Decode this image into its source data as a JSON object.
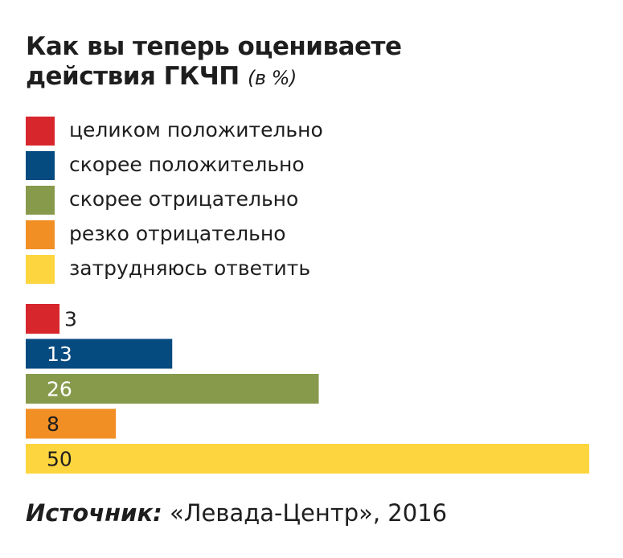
{
  "title": {
    "line1": "Как вы теперь оцениваете",
    "line2": "действия ГКЧП",
    "unit": "(в %)"
  },
  "legend": [
    {
      "label": "целиком положительно",
      "color": "#d8262d"
    },
    {
      "label": "скорее положительно",
      "color": "#064b80"
    },
    {
      "label": "скорее отрицательно",
      "color": "#879a4c"
    },
    {
      "label": "резко отрицательно",
      "color": "#f18f24"
    },
    {
      "label": "затрудняюсь ответить",
      "color": "#fdd63f"
    }
  ],
  "chart_data": {
    "type": "bar",
    "orientation": "horizontal",
    "categories": [
      "целиком положительно",
      "скорее положительно",
      "скорее отрицательно",
      "резко отрицательно",
      "затрудняюсь ответить"
    ],
    "values": [
      3,
      13,
      26,
      8,
      50
    ],
    "value_labels": [
      "3",
      "13",
      "26",
      "8",
      "50"
    ],
    "colors": [
      "#d8262d",
      "#064b80",
      "#879a4c",
      "#f18f24",
      "#fdd63f"
    ],
    "label_colors": [
      "#1e1e1e",
      "#ffffff",
      "#ffffff",
      "#1e1e1e",
      "#1e1e1e"
    ],
    "xlim": [
      0,
      50
    ],
    "grid": false,
    "legend_position": "top"
  },
  "source": {
    "label": "Источник:",
    "text": "«Левада-Центр», 2016"
  }
}
